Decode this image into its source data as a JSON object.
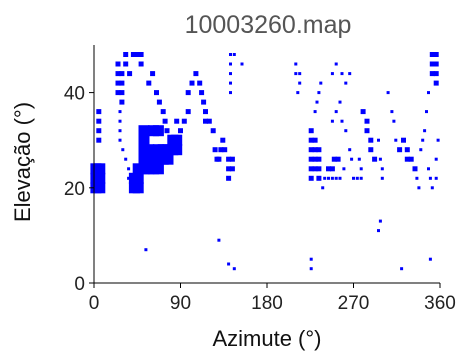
{
  "chart_data": {
    "type": "scatter",
    "title": "10003260.map",
    "xlabel": "Azimute (°)",
    "ylabel": "Elevação (°)",
    "xlim": [
      0,
      360
    ],
    "ylim": [
      0,
      50
    ],
    "xticks": [
      "0",
      "90",
      "180",
      "270",
      "360"
    ],
    "xtick_values": [
      0,
      90,
      180,
      270,
      360
    ],
    "yticks": [
      "0",
      "20",
      "40"
    ],
    "ytick_values": [
      0,
      20,
      40
    ],
    "grid": false,
    "marker_color": "#0000ff",
    "marker_shape": "square",
    "point_format": "[azimuth, elevation, weight]",
    "points": [
      [
        2,
        20,
        2
      ],
      [
        2,
        22,
        2
      ],
      [
        2,
        24,
        2
      ],
      [
        6,
        20,
        2
      ],
      [
        6,
        22,
        2
      ],
      [
        6,
        24,
        2
      ],
      [
        5,
        30,
        1
      ],
      [
        5,
        32,
        1
      ],
      [
        5,
        34,
        1
      ],
      [
        5,
        36,
        1
      ],
      [
        25,
        40,
        1
      ],
      [
        25,
        42,
        1
      ],
      [
        25,
        44,
        1
      ],
      [
        25,
        46,
        1
      ],
      [
        29,
        38,
        1
      ],
      [
        29,
        40,
        1
      ],
      [
        29,
        42,
        1
      ],
      [
        29,
        44,
        1
      ],
      [
        33,
        46,
        1
      ],
      [
        33,
        48,
        1
      ],
      [
        37,
        44,
        1
      ],
      [
        41,
        48,
        1
      ],
      [
        45,
        48,
        1
      ],
      [
        49,
        46,
        1
      ],
      [
        49,
        48,
        1
      ],
      [
        27,
        30,
        0.5
      ],
      [
        27,
        32,
        0.5
      ],
      [
        27,
        34,
        0.5
      ],
      [
        27,
        36,
        0.5
      ],
      [
        30,
        28,
        0.5
      ],
      [
        33,
        26,
        0.5
      ],
      [
        36,
        24,
        0.5
      ],
      [
        36,
        22,
        0.5
      ],
      [
        42,
        20,
        2
      ],
      [
        42,
        22,
        2
      ],
      [
        46,
        20,
        2
      ],
      [
        46,
        22,
        2
      ],
      [
        46,
        24,
        2
      ],
      [
        52,
        24,
        2
      ],
      [
        52,
        26,
        2
      ],
      [
        52,
        28,
        2
      ],
      [
        52,
        30,
        2
      ],
      [
        52,
        32,
        2
      ],
      [
        57,
        24,
        2
      ],
      [
        57,
        26,
        2
      ],
      [
        57,
        28,
        2
      ],
      [
        62,
        24,
        2
      ],
      [
        62,
        26,
        2
      ],
      [
        62,
        32,
        2
      ],
      [
        67,
        24,
        2
      ],
      [
        67,
        28,
        2
      ],
      [
        67,
        32,
        2
      ],
      [
        72,
        26,
        2
      ],
      [
        72,
        28,
        2
      ],
      [
        77,
        26,
        2
      ],
      [
        77,
        28,
        2
      ],
      [
        82,
        28,
        2
      ],
      [
        82,
        30,
        2
      ],
      [
        86,
        28,
        2
      ],
      [
        86,
        30,
        2
      ],
      [
        57,
        42,
        1
      ],
      [
        61,
        44,
        1
      ],
      [
        65,
        40,
        1
      ],
      [
        68,
        38,
        1
      ],
      [
        72,
        36,
        1
      ],
      [
        74,
        34,
        1
      ],
      [
        76,
        32,
        1
      ],
      [
        86,
        34,
        1
      ],
      [
        90,
        32,
        1
      ],
      [
        94,
        34,
        1
      ],
      [
        98,
        36,
        1
      ],
      [
        98,
        40,
        1
      ],
      [
        102,
        42,
        1
      ],
      [
        106,
        44,
        1
      ],
      [
        110,
        42,
        1
      ],
      [
        112,
        40,
        1
      ],
      [
        114,
        38,
        1
      ],
      [
        116,
        36,
        1
      ],
      [
        116,
        34,
        1
      ],
      [
        120,
        34,
        1
      ],
      [
        124,
        32,
        1
      ],
      [
        126,
        28,
        1
      ],
      [
        128,
        26,
        1
      ],
      [
        130,
        26,
        1
      ],
      [
        132,
        28,
        1
      ],
      [
        134,
        30,
        1
      ],
      [
        136,
        28,
        1
      ],
      [
        140,
        22,
        1
      ],
      [
        140,
        24,
        1
      ],
      [
        140,
        26,
        1
      ],
      [
        144,
        24,
        1
      ],
      [
        144,
        26,
        1
      ],
      [
        142,
        40,
        0.5
      ],
      [
        142,
        42,
        0.5
      ],
      [
        142,
        44,
        0.5
      ],
      [
        142,
        46,
        0.5
      ],
      [
        142,
        48,
        0.5
      ],
      [
        154,
        46,
        0.5
      ],
      [
        146,
        48,
        0.5
      ],
      [
        210,
        44,
        0.5
      ],
      [
        210,
        46,
        0.5
      ],
      [
        214,
        44,
        0.5
      ],
      [
        214,
        42,
        0.5
      ],
      [
        212,
        40,
        0.5
      ],
      [
        226,
        22,
        1
      ],
      [
        226,
        24,
        1
      ],
      [
        226,
        26,
        1
      ],
      [
        226,
        28,
        1
      ],
      [
        226,
        30,
        1
      ],
      [
        226,
        32,
        1
      ],
      [
        230,
        24,
        1
      ],
      [
        230,
        26,
        1
      ],
      [
        230,
        28,
        1
      ],
      [
        230,
        30,
        1
      ],
      [
        234,
        22,
        1
      ],
      [
        234,
        24,
        1
      ],
      [
        234,
        26,
        1
      ],
      [
        234,
        28,
        1
      ],
      [
        230,
        36,
        0.5
      ],
      [
        232,
        38,
        0.5
      ],
      [
        234,
        40,
        0.5
      ],
      [
        236,
        42,
        0.5
      ],
      [
        238,
        20,
        0.5
      ],
      [
        240,
        22,
        0.5
      ],
      [
        244,
        22,
        0.5
      ],
      [
        248,
        22,
        0.5
      ],
      [
        252,
        22,
        0.5
      ],
      [
        256,
        22,
        0.5
      ],
      [
        260,
        24,
        0.5
      ],
      [
        244,
        24,
        1
      ],
      [
        248,
        24,
        1
      ],
      [
        250,
        26,
        1
      ],
      [
        254,
        26,
        1
      ],
      [
        248,
        34,
        0.5
      ],
      [
        252,
        36,
        0.5
      ],
      [
        256,
        38,
        0.5
      ],
      [
        258,
        34,
        0.5
      ],
      [
        262,
        32,
        0.5
      ],
      [
        266,
        28,
        0.5
      ],
      [
        268,
        26,
        0.5
      ],
      [
        248,
        44,
        0.5
      ],
      [
        252,
        46,
        0.5
      ],
      [
        258,
        44,
        0.5
      ],
      [
        262,
        42,
        0.5
      ],
      [
        266,
        44,
        0.5
      ],
      [
        270,
        22,
        0.5
      ],
      [
        274,
        22,
        0.5
      ],
      [
        278,
        22,
        0.5
      ],
      [
        276,
        26,
        0.5
      ],
      [
        278,
        24,
        0.5
      ],
      [
        280,
        36,
        1
      ],
      [
        284,
        34,
        1
      ],
      [
        284,
        32,
        1
      ],
      [
        288,
        30,
        1
      ],
      [
        288,
        28,
        1
      ],
      [
        292,
        26,
        1
      ],
      [
        296,
        30,
        0.5
      ],
      [
        298,
        26,
        0.5
      ],
      [
        300,
        24,
        0.5
      ],
      [
        300,
        22,
        0.5
      ],
      [
        306,
        40,
        0.5
      ],
      [
        310,
        36,
        0.5
      ],
      [
        312,
        34,
        0.5
      ],
      [
        314,
        30,
        0.5
      ],
      [
        318,
        28,
        1
      ],
      [
        322,
        30,
        1
      ],
      [
        326,
        28,
        1
      ],
      [
        326,
        26,
        1
      ],
      [
        330,
        26,
        1
      ],
      [
        334,
        24,
        1
      ],
      [
        336,
        22,
        0.5
      ],
      [
        338,
        20,
        0.5
      ],
      [
        340,
        28,
        0.5
      ],
      [
        342,
        30,
        0.5
      ],
      [
        344,
        32,
        0.5
      ],
      [
        346,
        36,
        0.5
      ],
      [
        348,
        40,
        0.5
      ],
      [
        352,
        44,
        1
      ],
      [
        356,
        42,
        1
      ],
      [
        356,
        44,
        1
      ],
      [
        356,
        46,
        1
      ],
      [
        356,
        48,
        1
      ],
      [
        352,
        48,
        1
      ],
      [
        352,
        46,
        1
      ],
      [
        348,
        24,
        0.5
      ],
      [
        350,
        22,
        0.5
      ],
      [
        352,
        20,
        0.5
      ],
      [
        356,
        22,
        0.5
      ],
      [
        356,
        26,
        0.5
      ],
      [
        358,
        30,
        0.5
      ],
      [
        54,
        7,
        0.5
      ],
      [
        130,
        9,
        0.5
      ],
      [
        140,
        4,
        0.5
      ],
      [
        146,
        3,
        0.5
      ],
      [
        226,
        3,
        0.5
      ],
      [
        226,
        5,
        0.5
      ],
      [
        296,
        11,
        0.5
      ],
      [
        298,
        13,
        0.5
      ],
      [
        320,
        3,
        0.5
      ],
      [
        350,
        5,
        0.5
      ]
    ]
  }
}
